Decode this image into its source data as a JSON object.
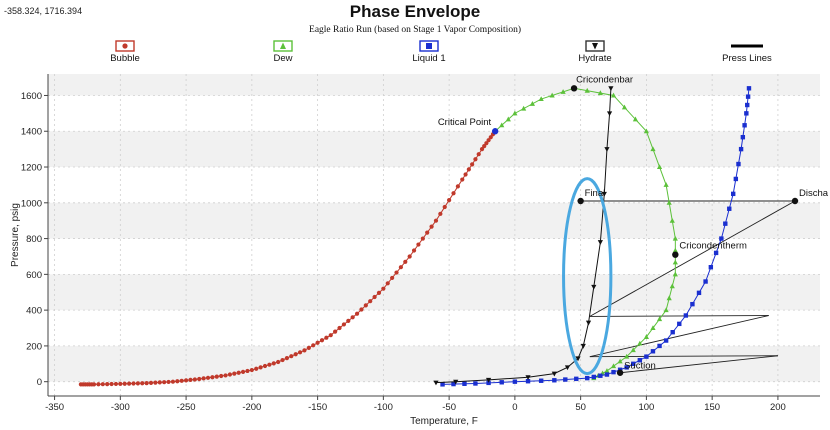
{
  "readout": "-358.324, 1716.394",
  "chart_data": {
    "type": "scatter",
    "title": "Phase Envelope",
    "subtitle": "Eagle Ratio Run (based on Stage 1 Vapor Composition)",
    "xlabel": "Temperature, F",
    "ylabel": "Pressure, psig",
    "xlim": [
      -355,
      232
    ],
    "ylim": [
      -80,
      1720
    ],
    "xticks": [
      -350,
      -300,
      -250,
      -200,
      -150,
      -100,
      -50,
      0,
      50,
      100,
      150,
      200
    ],
    "yticks": [
      0,
      200,
      400,
      600,
      800,
      1000,
      1200,
      1400,
      1600
    ],
    "grid": true,
    "legend": [
      {
        "name": "Bubble",
        "marker": "circle",
        "color": "#c0392b"
      },
      {
        "name": "Dew",
        "marker": "triangle",
        "color": "#5cc13a"
      },
      {
        "name": "Liquid 1",
        "marker": "square",
        "color": "#1a2fd0"
      },
      {
        "name": "Hydrate",
        "marker": "tri-down",
        "color": "#111111"
      },
      {
        "name": "Press Lines",
        "marker": "line",
        "color": "#000000"
      }
    ],
    "series": [
      {
        "name": "Bubble",
        "color": "#c0392b",
        "x": [
          -330,
          -320,
          -300,
          -280,
          -260,
          -240,
          -220,
          -200,
          -180,
          -160,
          -140,
          -120,
          -100,
          -80,
          -60,
          -40,
          -25,
          -15
        ],
        "y": [
          -15,
          -15,
          -12,
          -8,
          0,
          15,
          35,
          65,
          110,
          175,
          260,
          380,
          520,
          700,
          900,
          1130,
          1300,
          1400
        ]
      },
      {
        "name": "Dew",
        "color": "#5cc13a",
        "x": [
          -15,
          0,
          20,
          45,
          75,
          100,
          115,
          122,
          122,
          115,
          100,
          85,
          70,
          60
        ],
        "y": [
          1400,
          1500,
          1580,
          1640,
          1600,
          1400,
          1100,
          800,
          600,
          400,
          250,
          140,
          60,
          20
        ]
      },
      {
        "name": "Liquid 1",
        "color": "#1a2fd0",
        "x": [
          -55,
          -30,
          0,
          30,
          55,
          70,
          85,
          100,
          115,
          130,
          145,
          157,
          166,
          172,
          176,
          178
        ],
        "y": [
          -15,
          -10,
          0,
          8,
          20,
          40,
          80,
          140,
          230,
          370,
          560,
          800,
          1050,
          1300,
          1500,
          1640
        ]
      },
      {
        "name": "Hydrate",
        "color": "#111111",
        "x": [
          -60,
          -45,
          -20,
          10,
          30,
          40,
          48,
          52,
          56,
          60,
          65,
          68,
          70,
          72,
          73
        ],
        "y": [
          -5,
          0,
          10,
          25,
          45,
          80,
          130,
          200,
          330,
          530,
          780,
          1050,
          1300,
          1500,
          1640
        ]
      }
    ],
    "press_lines": [
      {
        "from": [
          50,
          1010
        ],
        "to": [
          213,
          1010
        ]
      },
      {
        "from": [
          213,
          1010
        ],
        "to": [
          57,
          365
        ]
      },
      {
        "from": [
          57,
          365
        ],
        "to": [
          193,
          370
        ]
      },
      {
        "from": [
          193,
          370
        ],
        "to": [
          57,
          140
        ]
      },
      {
        "from": [
          57,
          140
        ],
        "to": [
          200,
          145
        ]
      },
      {
        "from": [
          200,
          145
        ],
        "to": [
          80,
          50
        ]
      }
    ],
    "points": [
      {
        "label": "Cricondenbar",
        "x": 45,
        "y": 1640,
        "color": "#111111"
      },
      {
        "label": "Critical Point",
        "x": -15,
        "y": 1400,
        "color": "#1a2fd0"
      },
      {
        "label": "Final",
        "x": 50,
        "y": 1010,
        "color": "#111111"
      },
      {
        "label": "Discha",
        "x": 213,
        "y": 1010,
        "color": "#111111"
      },
      {
        "label": "Cricondentherm",
        "x": 122,
        "y": 710,
        "color": "#111111"
      },
      {
        "label": "Suction",
        "x": 80,
        "y": 50,
        "color": "#111111"
      }
    ],
    "highlight_ellipse": {
      "cx": 55,
      "cy": 590,
      "rx": 18,
      "ry": 545,
      "color": "#4aa8e0"
    }
  }
}
